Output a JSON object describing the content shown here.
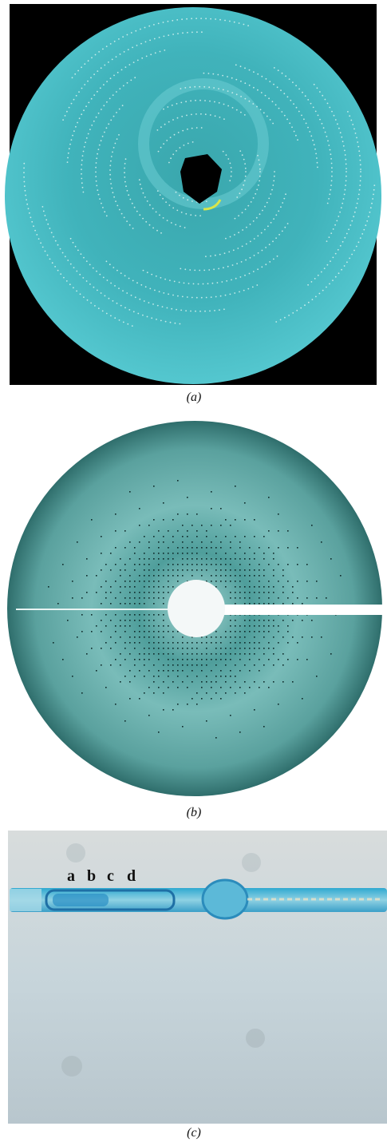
{
  "figure": {
    "panels": [
      {
        "caption": "(a)"
      },
      {
        "caption": "(b)"
      },
      {
        "caption": "(c)",
        "labels": [
          "a",
          "b",
          "c",
          "d"
        ]
      }
    ]
  }
}
